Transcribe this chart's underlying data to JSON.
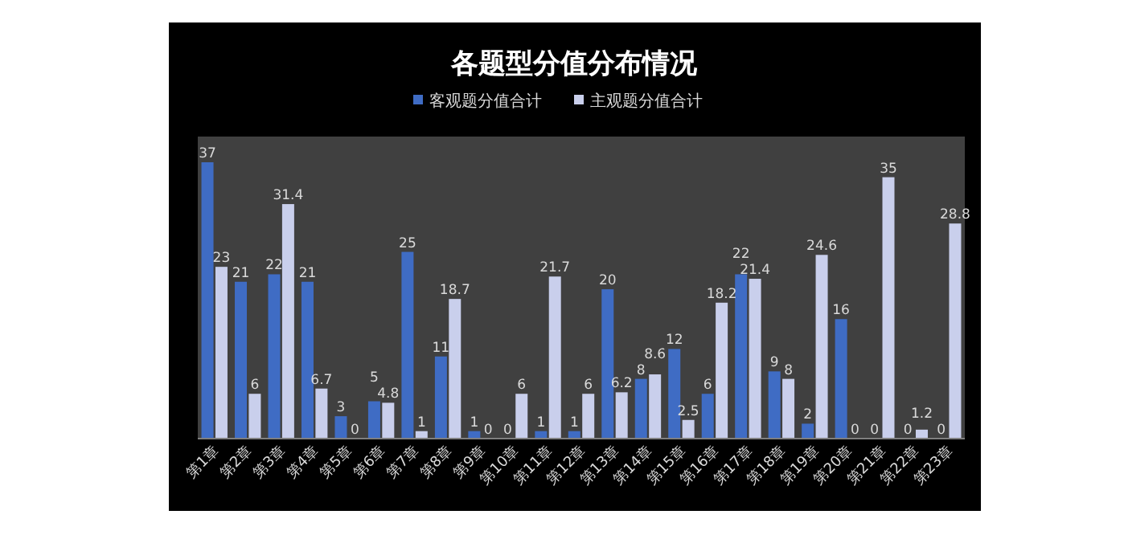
{
  "chart_data": {
    "type": "bar",
    "title": "各题型分值分布情况",
    "categories": [
      "第1章",
      "第2章",
      "第3章",
      "第4章",
      "第5章",
      "第6章",
      "第7章",
      "第8章",
      "第9章",
      "第10章",
      "第11章",
      "第12章",
      "第13章",
      "第14章",
      "第15章",
      "第16章",
      "第17章",
      "第18章",
      "第19章",
      "第20章",
      "第21章",
      "第22章",
      "第23章"
    ],
    "series": [
      {
        "name": "客观题分值合计",
        "color": "#3f6cc4",
        "values": [
          37,
          21,
          22,
          21,
          3,
          5,
          25,
          11,
          1,
          0,
          1,
          1,
          20,
          8,
          12,
          6,
          22,
          9,
          2,
          16,
          0,
          0,
          0
        ]
      },
      {
        "name": "主观题分值合计",
        "color": "#c9cfec",
        "values": [
          23,
          6,
          31.4,
          6.7,
          0,
          4.8,
          1,
          18.7,
          0,
          6,
          21.7,
          6,
          6.2,
          8.6,
          2.5,
          18.2,
          21.4,
          8,
          24.6,
          0,
          35,
          1.2,
          28.8
        ]
      }
    ],
    "data_labels": true,
    "legend": "top"
  }
}
